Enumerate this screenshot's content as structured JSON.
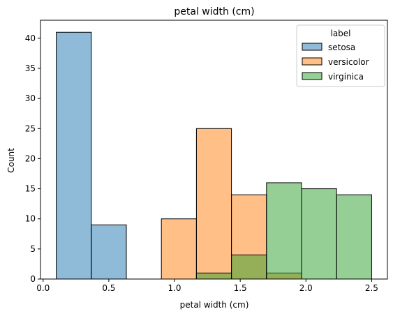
{
  "chart_data": {
    "type": "histogram",
    "title": "petal width (cm)",
    "xlabel": "petal width (cm)",
    "ylabel": "Count",
    "xlim": [
      -0.02,
      2.62
    ],
    "ylim": [
      0,
      43
    ],
    "xticks": [
      "0.0",
      "0.5",
      "1.0",
      "1.5",
      "2.0",
      "2.5"
    ],
    "yticks": [
      "0",
      "5",
      "10",
      "15",
      "20",
      "25",
      "30",
      "35",
      "40"
    ],
    "grid": false,
    "legend": {
      "title": "label",
      "position": "top-right"
    },
    "bin_edges": [
      0.1,
      0.3667,
      0.6333,
      0.9,
      1.1667,
      1.4333,
      1.7,
      1.9667,
      2.2333,
      2.5
    ],
    "series": [
      {
        "name": "setosa",
        "color": "#1f77b4",
        "values": [
          41,
          9,
          0,
          0,
          0,
          0,
          0,
          0,
          0
        ]
      },
      {
        "name": "versicolor",
        "color": "#ff7f0e",
        "values": [
          0,
          0,
          0,
          10,
          25,
          14,
          1,
          0,
          0
        ]
      },
      {
        "name": "virginica",
        "color": "#2ca02c",
        "values": [
          0,
          0,
          0,
          0,
          1,
          4,
          16,
          15,
          14
        ]
      }
    ]
  }
}
